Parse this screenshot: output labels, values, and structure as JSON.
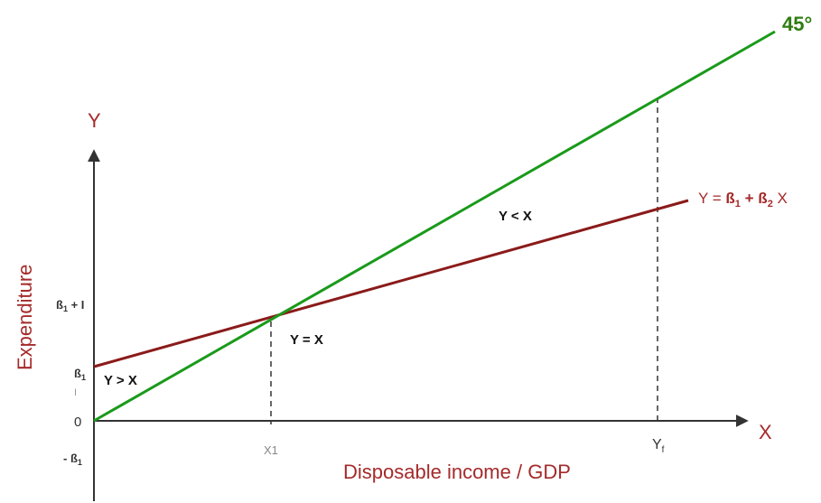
{
  "angle_label": "45°",
  "y_axis_letter": "Y",
  "x_axis_letter": "X",
  "y_axis_title": "Expenditure",
  "x_axis_title": "Disposable income / GDP",
  "labels": {
    "b1_plus_i_main": "ß",
    "b1_plus_i_sub": "1",
    "b1_plus_i_rest": " + I",
    "b1_main": "ß",
    "b1_sub": "1",
    "small_i": "I",
    "zero": "0",
    "minus_b1_main": "- ß",
    "minus_b1_sub": "1",
    "x1": "X1",
    "yf_main": "Y",
    "yf_sub": "f"
  },
  "regions": {
    "y_gt_x": "Y > X",
    "y_eq_x": "Y = X",
    "y_lt_x": "Y < X"
  },
  "equation": {
    "part1": "Y = ",
    "b1": "ß",
    "b1_sub": "1",
    "plus": " + ",
    "b2": "ß",
    "b2_sub": "2",
    "x": " X"
  },
  "colors": {
    "green_line": "#1a9a1a",
    "red_line": "#8b1a1a",
    "axis": "#333333",
    "title_red": "#a52a2a",
    "angle_green": "#2e7d10"
  }
}
